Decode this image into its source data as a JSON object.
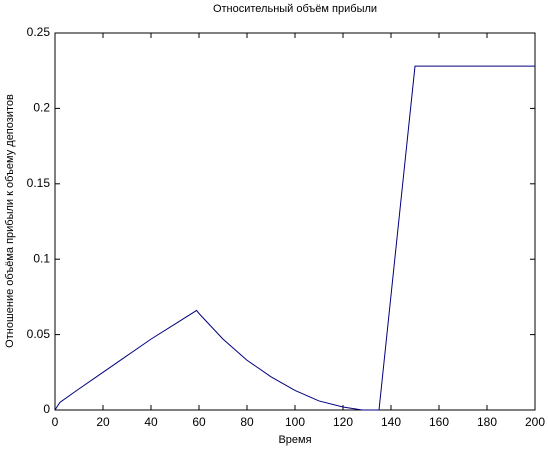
{
  "chart_data": {
    "type": "line",
    "title": "Относительный объём прибыли",
    "xlabel": "Время",
    "ylabel": "Отношение объёма прибыли к объему депозитов",
    "x": [
      0,
      2,
      10,
      20,
      30,
      40,
      50,
      59,
      60,
      70,
      80,
      90,
      100,
      110,
      120,
      128,
      135,
      150,
      200
    ],
    "series": [
      {
        "color": "#00007f",
        "values": [
          0,
          0.005,
          0.014,
          0.025,
          0.036,
          0.047,
          0.057,
          0.066,
          0.064,
          0.047,
          0.033,
          0.022,
          0.013,
          0.006,
          0.002,
          0,
          0,
          0.228,
          0.228
        ]
      }
    ],
    "xlim": [
      0,
      200
    ],
    "xticks": [
      0,
      20,
      40,
      60,
      80,
      100,
      120,
      140,
      160,
      180,
      200
    ],
    "ylim": [
      0,
      0.25
    ],
    "yticks": [
      0,
      0.05,
      0.1,
      0.15,
      0.2,
      0.25
    ],
    "grid": false
  }
}
